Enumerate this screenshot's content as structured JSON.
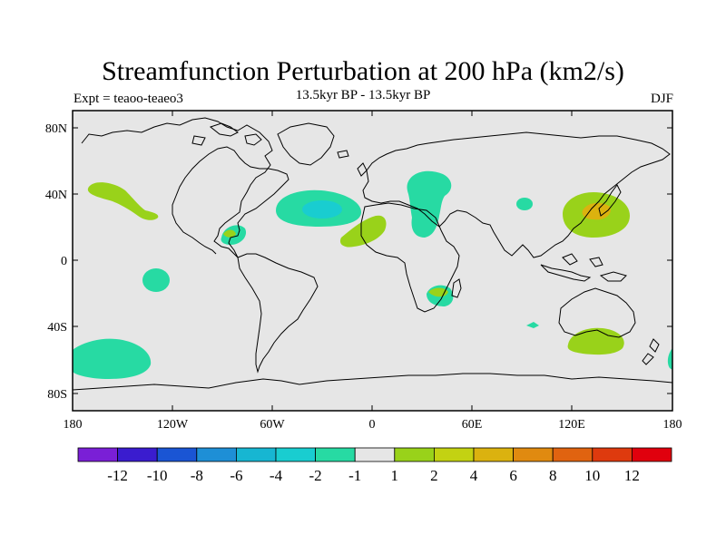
{
  "title": "Streamfunction Perturbation at 200 hPa (km2/s)",
  "subtitle_left": "Expt = teaoo-teaeo3",
  "subtitle_center": "13.5kyr BP - 13.5kyr BP",
  "subtitle_right": "DJF",
  "lat_ticks": [
    "80N",
    "40N",
    "0",
    "40S",
    "80S"
  ],
  "lon_ticks": [
    "180",
    "120W",
    "60W",
    "0",
    "60E",
    "120E",
    "180"
  ],
  "colorbar": {
    "colors": [
      "#7a1fd6",
      "#3a1ccf",
      "#1a55d4",
      "#1e8fd6",
      "#17b6d2",
      "#19cdd0",
      "#27daa3",
      "#e6e6e6",
      "#99d21a",
      "#c3d212",
      "#dbb20f",
      "#e08a10",
      "#e06310",
      "#de3a0e",
      "#e0000d"
    ],
    "labels": [
      "-12",
      "-10",
      "-8",
      "-6",
      "-4",
      "-2",
      "-1",
      "1",
      "2",
      "4",
      "6",
      "8",
      "10",
      "12"
    ]
  },
  "chart_data": {
    "type": "map",
    "projection": "cylindrical-equidistant",
    "lon_range": [
      -180,
      180
    ],
    "lat_range": [
      -90,
      90
    ],
    "anomalies": [
      {
        "lon": -145,
        "lat": 40,
        "level": 2
      },
      {
        "lon": -85,
        "lat": 16,
        "level": -1
      },
      {
        "lon": -130,
        "lat": -12,
        "level": -1
      },
      {
        "lon": -32,
        "lat": 31,
        "level": -1
      },
      {
        "lon": -32,
        "lat": 31,
        "level": -2
      },
      {
        "lon": -15,
        "lat": 16,
        "level": 2
      },
      {
        "lon": 42,
        "lat": 45,
        "level": -1
      },
      {
        "lon": 32,
        "lat": 28,
        "level": -1
      },
      {
        "lon": 42,
        "lat": -21,
        "level": 2
      },
      {
        "lon": 42,
        "lat": -24,
        "level": -1
      },
      {
        "lon": 92,
        "lat": 34,
        "level": -1
      },
      {
        "lon": 96,
        "lat": -40,
        "level": -1
      },
      {
        "lon": 137,
        "lat": 32,
        "level": 2
      },
      {
        "lon": 137,
        "lat": 30,
        "level": 4
      },
      {
        "lon": 140,
        "lat": -50,
        "level": 2
      },
      {
        "lon": -157,
        "lat": -60,
        "level": -1
      },
      {
        "lon": 180,
        "lat": -62,
        "level": -1
      }
    ]
  }
}
